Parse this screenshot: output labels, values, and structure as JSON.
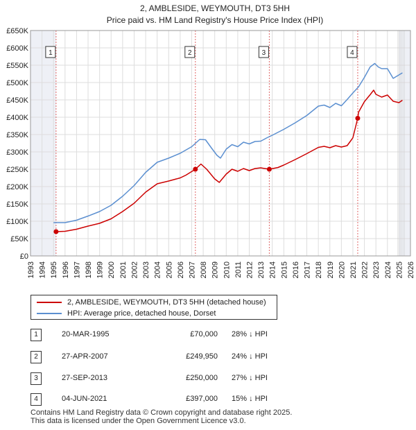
{
  "chart_data": {
    "type": "line",
    "title": "2, AMBLESIDE, WEYMOUTH, DT3 5HH",
    "subtitle": "Price paid vs. HM Land Registry's House Price Index (HPI)",
    "xlim": [
      1993,
      2026
    ],
    "ylim": [
      0,
      650000
    ],
    "y_ticks": [
      0,
      50000,
      100000,
      150000,
      200000,
      250000,
      300000,
      350000,
      400000,
      450000,
      500000,
      550000,
      600000,
      650000
    ],
    "y_tick_labels": [
      "£0",
      "£50K",
      "£100K",
      "£150K",
      "£200K",
      "£250K",
      "£300K",
      "£350K",
      "£400K",
      "£450K",
      "£500K",
      "£550K",
      "£600K",
      "£650K"
    ],
    "x_ticks": [
      1993,
      1994,
      1995,
      1996,
      1997,
      1998,
      1999,
      2000,
      2001,
      2002,
      2003,
      2004,
      2005,
      2006,
      2007,
      2008,
      2009,
      2010,
      2011,
      2012,
      2013,
      2014,
      2015,
      2016,
      2017,
      2018,
      2019,
      2020,
      2021,
      2022,
      2023,
      2024,
      2025,
      2026
    ],
    "x_tick_labels": [
      "1993",
      "1994",
      "1995",
      "1996",
      "1997",
      "1998",
      "1999",
      "2000",
      "2001",
      "2002",
      "2003",
      "2004",
      "2005",
      "2006",
      "2007",
      "2008",
      "2009",
      "2010",
      "2011",
      "2012",
      "2013",
      "2014",
      "2015",
      "2016",
      "2017",
      "2018",
      "2019",
      "2020",
      "2021",
      "2022",
      "2023",
      "2024",
      "2025",
      "2026"
    ],
    "series": [
      {
        "name": "2, AMBLESIDE, WEYMOUTH, DT3 5HH (detached house)",
        "color": "#cc0000",
        "x": [
          1995.22,
          1996.0,
          1997.0,
          1998.0,
          1999.0,
          2000.0,
          2001.0,
          2002.0,
          2003.0,
          2004.0,
          2005.0,
          2006.0,
          2006.5,
          2007.32,
          2007.8,
          2008.3,
          2009.0,
          2009.4,
          2010.0,
          2010.5,
          2011.0,
          2011.5,
          2012.0,
          2012.5,
          2013.0,
          2013.74,
          2014.5,
          2015.0,
          2016.0,
          2017.0,
          2018.0,
          2018.5,
          2019.0,
          2019.5,
          2020.0,
          2020.5,
          2020.9,
          2021.0,
          2021.42,
          2021.5,
          2022.0,
          2022.5,
          2022.8,
          2023.0,
          2023.5,
          2024.0,
          2024.5,
          2025.0,
          2025.3
        ],
        "values": [
          70000,
          71000,
          77000,
          86000,
          94000,
          107000,
          128000,
          152000,
          184000,
          208000,
          216000,
          225000,
          233000,
          249950,
          265000,
          250000,
          222000,
          212000,
          236000,
          250000,
          244000,
          252000,
          246000,
          252000,
          254000,
          250000,
          255000,
          262000,
          278000,
          295000,
          313000,
          316000,
          312000,
          318000,
          314000,
          318000,
          336000,
          341000,
          397000,
          415000,
          445000,
          465000,
          478000,
          466000,
          458000,
          464000,
          446000,
          442000,
          449000
        ]
      },
      {
        "name": "HPI: Average price, detached house, Dorset",
        "color": "#5b8fd0",
        "x": [
          1995.0,
          1996.0,
          1997.0,
          1998.0,
          1999.0,
          2000.0,
          2001.0,
          2002.0,
          2003.0,
          2004.0,
          2005.0,
          2006.0,
          2007.0,
          2007.7,
          2008.2,
          2008.7,
          2009.2,
          2009.5,
          2010.0,
          2010.5,
          2011.0,
          2011.5,
          2012.0,
          2012.5,
          2013.0,
          2013.5,
          2014.0,
          2015.0,
          2016.0,
          2017.0,
          2018.0,
          2018.5,
          2019.0,
          2019.5,
          2020.0,
          2020.5,
          2021.0,
          2021.5,
          2022.0,
          2022.5,
          2022.9,
          2023.2,
          2023.5,
          2024.0,
          2024.5,
          2025.0,
          2025.3
        ],
        "values": [
          96000,
          96000,
          103000,
          115000,
          128000,
          146000,
          172000,
          203000,
          241000,
          270000,
          282000,
          296000,
          315000,
          336000,
          335000,
          312000,
          290000,
          282000,
          308000,
          321000,
          315000,
          328000,
          323000,
          330000,
          331000,
          340000,
          348000,
          365000,
          384000,
          405000,
          432000,
          435000,
          428000,
          440000,
          433000,
          451000,
          470000,
          488000,
          515000,
          545000,
          555000,
          545000,
          540000,
          540000,
          512000,
          522000,
          528000
        ]
      }
    ],
    "markers": [
      {
        "label": "1",
        "x": 1995.22,
        "y": 70000
      },
      {
        "label": "2",
        "x": 2007.32,
        "y": 249950
      },
      {
        "label": "3",
        "x": 2013.74,
        "y": 250000
      },
      {
        "label": "4",
        "x": 2021.42,
        "y": 397000
      }
    ]
  },
  "legend": {
    "items": [
      {
        "label": "2, AMBLESIDE, WEYMOUTH, DT3 5HH (detached house)",
        "color": "#cc0000"
      },
      {
        "label": "HPI: Average price, detached house, Dorset",
        "color": "#5b8fd0"
      }
    ]
  },
  "transactions": [
    {
      "num": "1",
      "date": "20-MAR-1995",
      "price": "£70,000",
      "hpi": "28% ↓ HPI"
    },
    {
      "num": "2",
      "date": "27-APR-2007",
      "price": "£249,950",
      "hpi": "24% ↓ HPI"
    },
    {
      "num": "3",
      "date": "27-SEP-2013",
      "price": "£250,000",
      "hpi": "27% ↓ HPI"
    },
    {
      "num": "4",
      "date": "04-JUN-2021",
      "price": "£397,000",
      "hpi": "15% ↓ HPI"
    }
  ],
  "footer": {
    "line1": "Contains HM Land Registry data © Crown copyright and database right 2025.",
    "line2": "This data is licensed under the Open Government Licence v3.0."
  }
}
